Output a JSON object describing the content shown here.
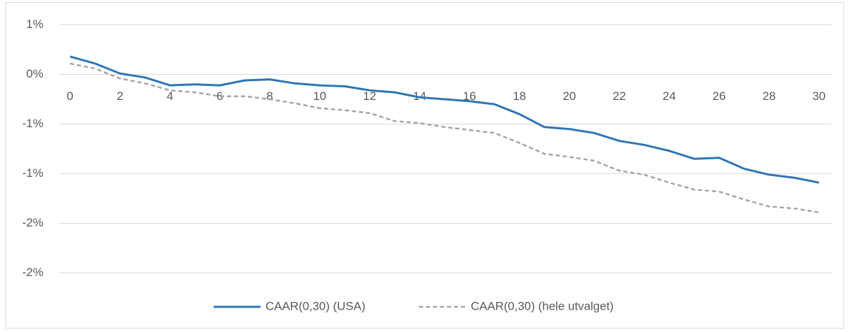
{
  "chart_data": {
    "type": "line",
    "x": [
      0,
      1,
      2,
      3,
      4,
      5,
      6,
      7,
      8,
      9,
      10,
      11,
      12,
      13,
      14,
      15,
      16,
      17,
      18,
      19,
      20,
      21,
      22,
      23,
      24,
      25,
      26,
      27,
      28,
      29,
      30
    ],
    "series": [
      {
        "name": "CAAR(0,30) (USA)",
        "color": "#2e75b6",
        "dash": "solid",
        "values": [
          0.18,
          0.11,
          0.01,
          -0.03,
          -0.11,
          -0.1,
          -0.11,
          -0.06,
          -0.05,
          -0.09,
          -0.11,
          -0.12,
          -0.16,
          -0.18,
          -0.23,
          -0.25,
          -0.27,
          -0.3,
          -0.4,
          -0.53,
          -0.55,
          -0.59,
          -0.67,
          -0.71,
          -0.77,
          -0.85,
          -0.84,
          -0.95,
          -1.01,
          -1.04,
          -1.09
        ]
      },
      {
        "name": "CAAR(0,30) (hele utvalget)",
        "color": "#a5a5a5",
        "dash": "dashed",
        "values": [
          0.11,
          0.06,
          -0.04,
          -0.09,
          -0.16,
          -0.18,
          -0.22,
          -0.22,
          -0.25,
          -0.29,
          -0.34,
          -0.36,
          -0.39,
          -0.47,
          -0.49,
          -0.53,
          -0.56,
          -0.59,
          -0.69,
          -0.8,
          -0.83,
          -0.87,
          -0.97,
          -1.01,
          -1.09,
          -1.16,
          -1.18,
          -1.26,
          -1.33,
          -1.35,
          -1.39
        ]
      }
    ],
    "xlim": [
      -0.45,
      30.5
    ],
    "xticks": [
      0,
      2,
      4,
      6,
      8,
      10,
      12,
      14,
      16,
      18,
      20,
      22,
      24,
      26,
      28,
      30
    ],
    "ylim": [
      -2.0,
      0.5
    ],
    "yticks": [
      {
        "value": 0.5,
        "label": "1%"
      },
      {
        "value": 0,
        "label": "0%"
      },
      {
        "value": -0.5,
        "label": "-1%"
      },
      {
        "value": -1.0,
        "label": "-1%"
      },
      {
        "value": -1.5,
        "label": "-2%"
      },
      {
        "value": -2.0,
        "label": "-2%"
      }
    ],
    "grid": true,
    "legend": "bottom"
  }
}
